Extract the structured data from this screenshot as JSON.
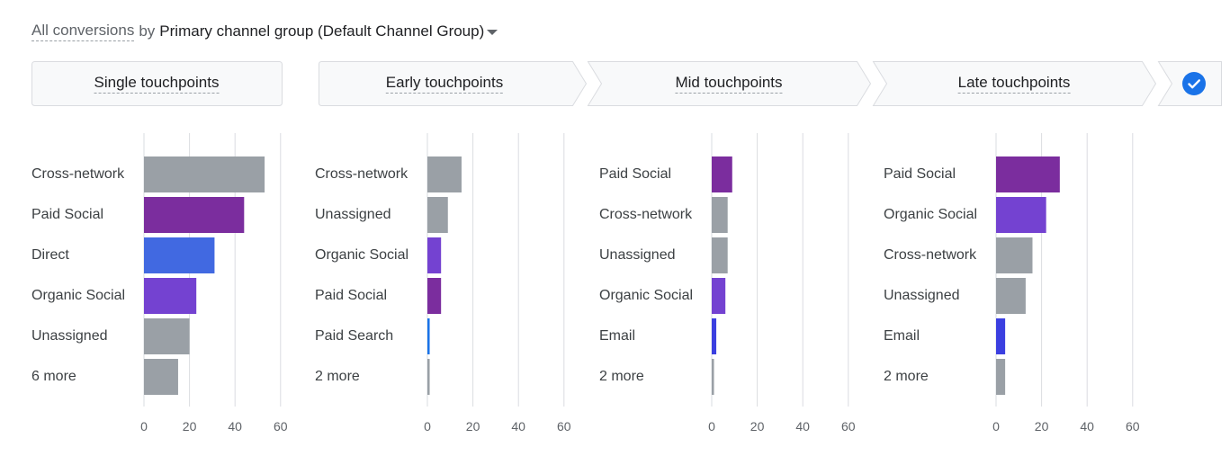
{
  "header": {
    "metric": "All conversions",
    "by": "by",
    "dimension": "Primary channel group (Default Channel Group)"
  },
  "tabs": [
    {
      "label": "Single touchpoints"
    },
    {
      "label": "Early touchpoints"
    },
    {
      "label": "Mid touchpoints"
    },
    {
      "label": "Late touchpoints"
    }
  ],
  "colors": {
    "gray": "#9aa0a6",
    "purple": "#7b2d9e",
    "blue": "#4169e1",
    "violet": "#7442d1",
    "bright_blue": "#1a73e8",
    "indigo": "#3b3fe0",
    "grid": "#dadce0",
    "tab_bg": "#f8f9fa",
    "tab_border": "#dadce0",
    "check": "#1a73e8"
  },
  "chart_data": [
    {
      "type": "bar",
      "title": "Single touchpoints",
      "categories": [
        "Cross-network",
        "Paid Social",
        "Direct",
        "Organic Social",
        "Unassigned",
        "6 more"
      ],
      "values": [
        53,
        44,
        31,
        23,
        20,
        15
      ],
      "colors": [
        "gray",
        "purple",
        "blue",
        "violet",
        "gray",
        "gray"
      ],
      "xticks": [
        "0",
        "20",
        "40",
        "60"
      ],
      "xlim": [
        0,
        60
      ]
    },
    {
      "type": "bar",
      "title": "Early touchpoints",
      "categories": [
        "Cross-network",
        "Unassigned",
        "Organic Social",
        "Paid Social",
        "Paid Search",
        "2 more"
      ],
      "values": [
        15,
        9,
        6,
        6,
        1,
        1
      ],
      "colors": [
        "gray",
        "gray",
        "violet",
        "purple",
        "bright_blue",
        "gray"
      ],
      "xticks": [
        "0",
        "20",
        "40",
        "60"
      ],
      "xlim": [
        0,
        60
      ]
    },
    {
      "type": "bar",
      "title": "Mid touchpoints",
      "categories": [
        "Paid Social",
        "Cross-network",
        "Unassigned",
        "Organic Social",
        "Email",
        "2 more"
      ],
      "values": [
        9,
        7,
        7,
        6,
        2,
        1
      ],
      "colors": [
        "purple",
        "gray",
        "gray",
        "violet",
        "indigo",
        "gray"
      ],
      "xticks": [
        "0",
        "20",
        "40",
        "60"
      ],
      "xlim": [
        0,
        60
      ]
    },
    {
      "type": "bar",
      "title": "Late touchpoints",
      "categories": [
        "Paid Social",
        "Organic Social",
        "Cross-network",
        "Unassigned",
        "Email",
        "2 more"
      ],
      "values": [
        28,
        22,
        16,
        13,
        4,
        4
      ],
      "colors": [
        "purple",
        "violet",
        "gray",
        "gray",
        "indigo",
        "gray"
      ],
      "xticks": [
        "0",
        "20",
        "40",
        "60"
      ],
      "xlim": [
        0,
        60
      ]
    }
  ]
}
